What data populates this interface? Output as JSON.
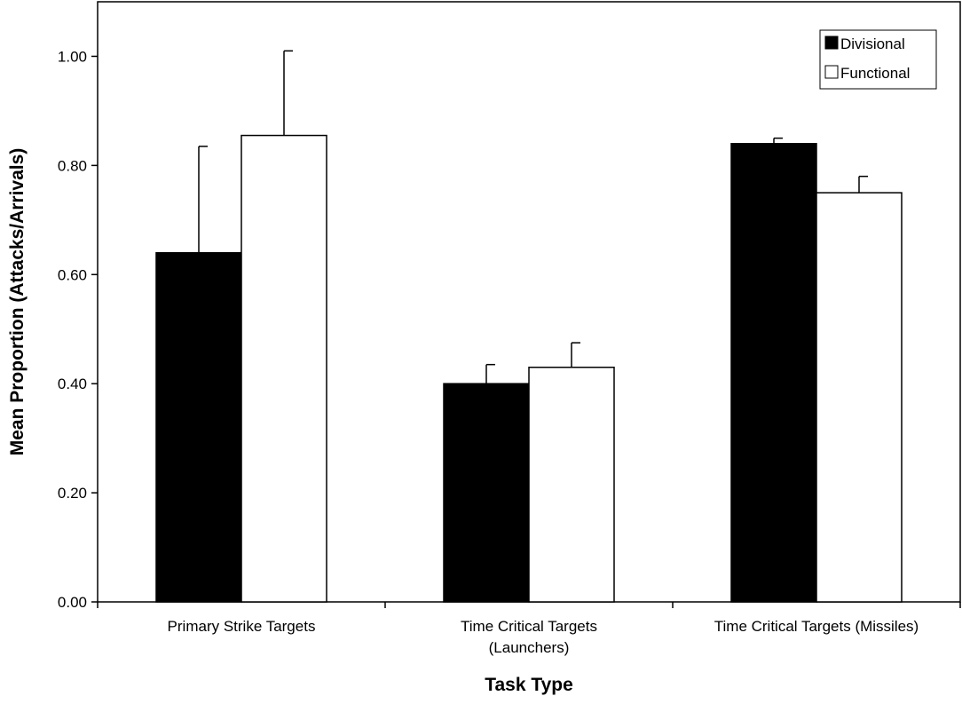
{
  "chart_data": {
    "type": "bar",
    "title": "",
    "xlabel": "Task Type",
    "ylabel": "Mean Proportion (Attacks/Arrivals)",
    "ylim": [
      0,
      1.0
    ],
    "ytick_values": [
      0,
      0.2,
      0.4,
      0.6,
      0.8,
      1.0
    ],
    "ytick_labels": [
      "0.00",
      "0.20",
      "0.40",
      "0.60",
      "0.80",
      "1.00"
    ],
    "categories": [
      [
        "Primary Strike Targets"
      ],
      [
        "Time Critical Targets",
        "(Launchers)"
      ],
      [
        "Time Critical Targets (Missiles)"
      ]
    ],
    "series": [
      {
        "name": "Divisional",
        "color": "#000000",
        "values": [
          0.64,
          0.4,
          0.84
        ],
        "error_plus": [
          0.195,
          0.035,
          0.01
        ]
      },
      {
        "name": "Functional",
        "color": "#ffffff",
        "values": [
          0.855,
          0.43,
          0.75
        ],
        "error_plus": [
          0.155,
          0.045,
          0.03
        ]
      }
    ],
    "legend_position": "top-right",
    "grid": false
  }
}
